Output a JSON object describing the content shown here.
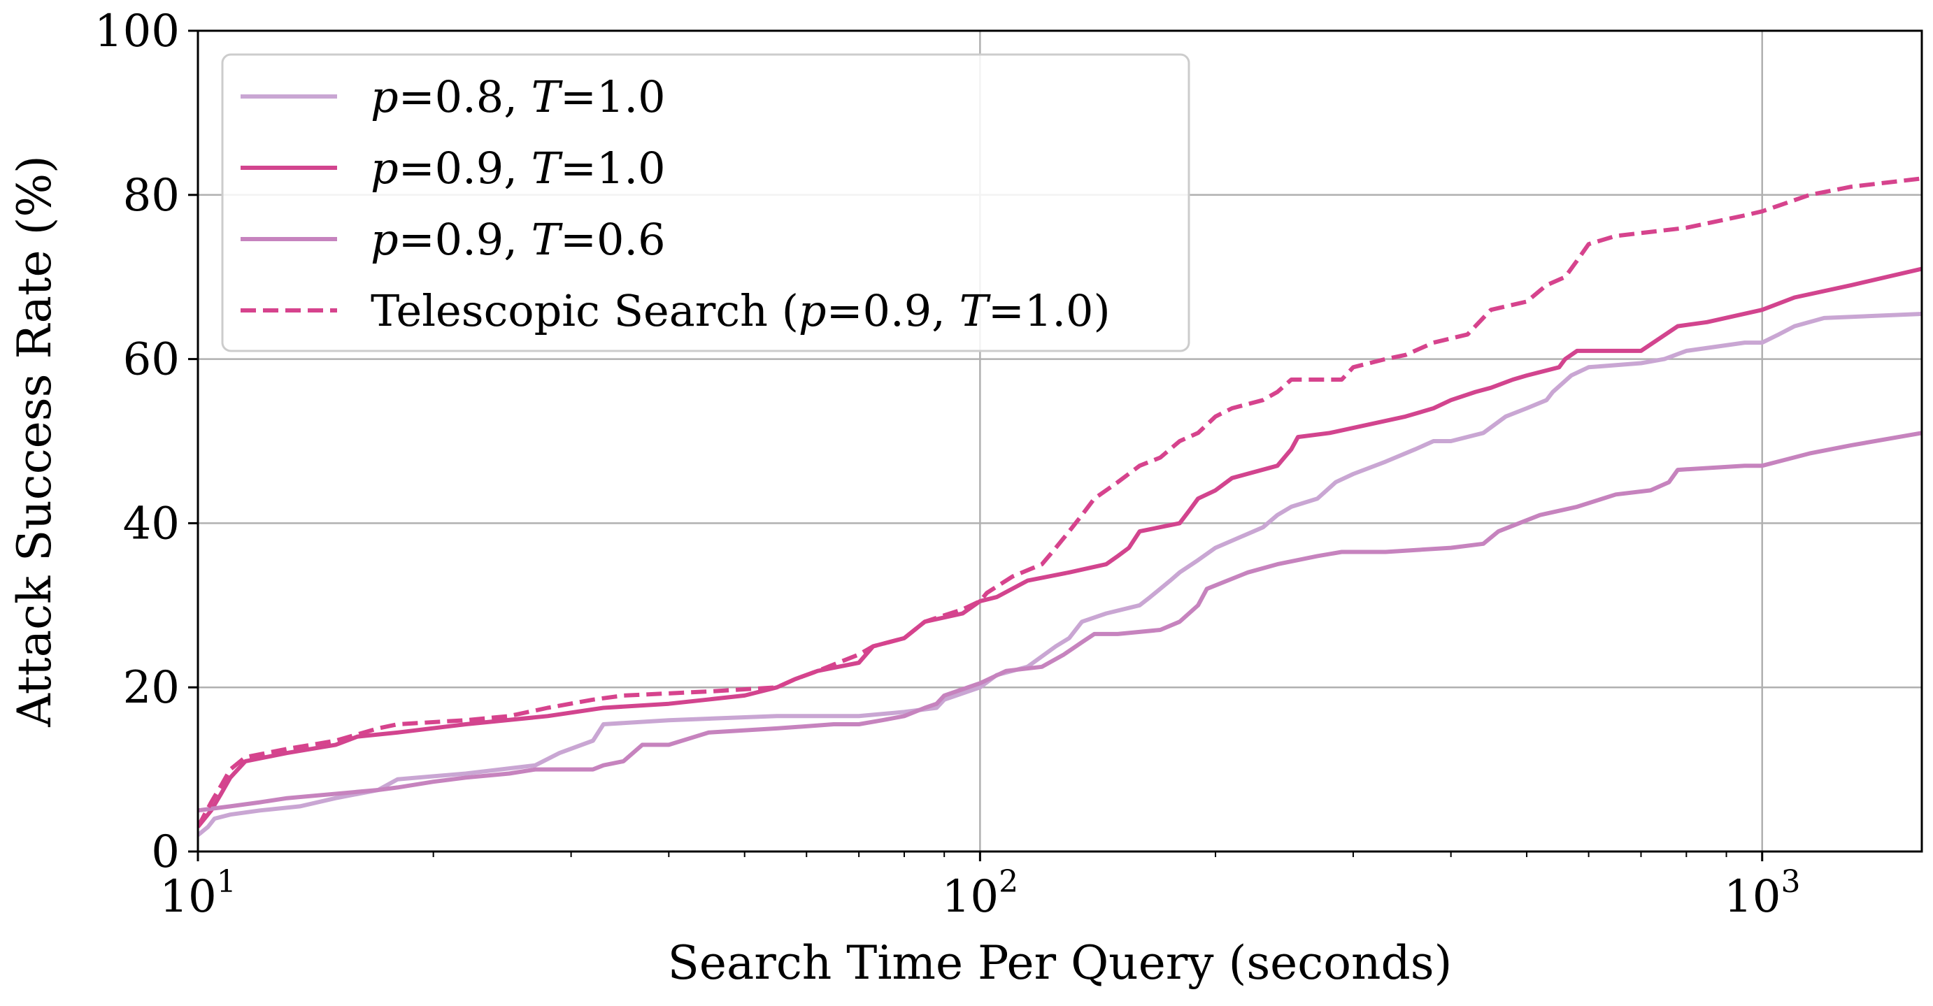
{
  "chart_data": {
    "type": "line",
    "xlabel": "Search Time Per Query (seconds)",
    "ylabel": "Attack Success Rate (%)",
    "x_scale": "log",
    "xlim": [
      10,
      1600
    ],
    "ylim": [
      0,
      100
    ],
    "grid": true,
    "legend_position": "top-left",
    "x_ticks": [
      {
        "value": 10,
        "base": "10",
        "exp": "1"
      },
      {
        "value": 100,
        "base": "10",
        "exp": "2"
      },
      {
        "value": 1000,
        "base": "10",
        "exp": "3"
      }
    ],
    "y_ticks": [
      0,
      20,
      40,
      60,
      80,
      100
    ],
    "y_tick_labels": [
      "0",
      "20",
      "40",
      "60",
      "80",
      "100"
    ],
    "series": [
      {
        "name": "p=0.8, T=1.0",
        "label": {
          "p": "p",
          "pval": "=0.8, ",
          "t": "T",
          "tval": "=1.0",
          "prefix": "",
          "suffix": ""
        },
        "color": "#c9a6d3",
        "dashed": false,
        "points": [
          [
            10,
            2
          ],
          [
            10.3,
            3
          ],
          [
            10.5,
            4
          ],
          [
            11,
            4.5
          ],
          [
            12,
            5
          ],
          [
            13.5,
            5.5
          ],
          [
            15,
            6.5
          ],
          [
            17,
            7.5
          ],
          [
            18,
            8.8
          ],
          [
            22,
            9.5
          ],
          [
            27,
            10.5
          ],
          [
            29,
            12
          ],
          [
            32,
            13.5
          ],
          [
            33,
            15.5
          ],
          [
            40,
            16
          ],
          [
            55,
            16.5
          ],
          [
            70,
            16.5
          ],
          [
            80,
            17
          ],
          [
            88,
            17.5
          ],
          [
            90,
            18.5
          ],
          [
            100,
            20
          ],
          [
            105,
            21.5
          ],
          [
            115,
            22.5
          ],
          [
            125,
            25
          ],
          [
            130,
            26
          ],
          [
            135,
            28
          ],
          [
            145,
            29
          ],
          [
            160,
            30
          ],
          [
            165,
            31
          ],
          [
            175,
            33
          ],
          [
            180,
            34
          ],
          [
            190,
            35.5
          ],
          [
            200,
            37
          ],
          [
            230,
            39.5
          ],
          [
            240,
            41
          ],
          [
            250,
            42
          ],
          [
            270,
            43
          ],
          [
            285,
            45
          ],
          [
            300,
            46
          ],
          [
            330,
            47.5
          ],
          [
            360,
            49
          ],
          [
            380,
            50
          ],
          [
            400,
            50
          ],
          [
            440,
            51
          ],
          [
            470,
            53
          ],
          [
            500,
            54
          ],
          [
            530,
            55
          ],
          [
            540,
            56
          ],
          [
            570,
            58
          ],
          [
            600,
            59
          ],
          [
            700,
            59.5
          ],
          [
            750,
            60
          ],
          [
            800,
            61
          ],
          [
            950,
            62
          ],
          [
            1000,
            62
          ],
          [
            1050,
            63
          ],
          [
            1100,
            64
          ],
          [
            1200,
            65
          ],
          [
            1600,
            65.5
          ]
        ]
      },
      {
        "name": "p=0.9, T=1.0",
        "label": {
          "p": "p",
          "pval": "=0.9, ",
          "t": "T",
          "tval": "=1.0",
          "prefix": "",
          "suffix": ""
        },
        "color": "#d2448e",
        "dashed": false,
        "points": [
          [
            10,
            3
          ],
          [
            10.4,
            5
          ],
          [
            10.7,
            7
          ],
          [
            11,
            9
          ],
          [
            11.5,
            11
          ],
          [
            13,
            12
          ],
          [
            15,
            13
          ],
          [
            16,
            14
          ],
          [
            18,
            14.5
          ],
          [
            22,
            15.5
          ],
          [
            28,
            16.5
          ],
          [
            33,
            17.5
          ],
          [
            40,
            18
          ],
          [
            50,
            19
          ],
          [
            55,
            20
          ],
          [
            58,
            21
          ],
          [
            62,
            22
          ],
          [
            70,
            23
          ],
          [
            73,
            25
          ],
          [
            80,
            26
          ],
          [
            85,
            28
          ],
          [
            95,
            29
          ],
          [
            100,
            30.5
          ],
          [
            105,
            31
          ],
          [
            115,
            33
          ],
          [
            130,
            34
          ],
          [
            145,
            35
          ],
          [
            150,
            36
          ],
          [
            155,
            37
          ],
          [
            160,
            39
          ],
          [
            180,
            40
          ],
          [
            185,
            41.5
          ],
          [
            190,
            43
          ],
          [
            200,
            44
          ],
          [
            210,
            45.5
          ],
          [
            240,
            47
          ],
          [
            250,
            49
          ],
          [
            255,
            50.5
          ],
          [
            280,
            51
          ],
          [
            350,
            53
          ],
          [
            380,
            54
          ],
          [
            400,
            55
          ],
          [
            430,
            56
          ],
          [
            450,
            56.5
          ],
          [
            480,
            57.5
          ],
          [
            500,
            58
          ],
          [
            550,
            59
          ],
          [
            560,
            60
          ],
          [
            580,
            61
          ],
          [
            700,
            61
          ],
          [
            780,
            64
          ],
          [
            850,
            64.5
          ],
          [
            1000,
            66
          ],
          [
            1100,
            67.5
          ],
          [
            1300,
            69
          ],
          [
            1600,
            71
          ]
        ]
      },
      {
        "name": "p=0.9, T=0.6",
        "label": {
          "p": "p",
          "pval": "=0.9, ",
          "t": "T",
          "tval": "=0.6",
          "prefix": "",
          "suffix": ""
        },
        "color": "#c683be",
        "dashed": false,
        "points": [
          [
            10,
            5
          ],
          [
            11,
            5.5
          ],
          [
            12,
            6
          ],
          [
            13,
            6.5
          ],
          [
            17,
            7.5
          ],
          [
            18,
            7.8
          ],
          [
            20,
            8.5
          ],
          [
            22,
            9
          ],
          [
            25,
            9.5
          ],
          [
            27,
            10
          ],
          [
            32,
            10
          ],
          [
            33,
            10.5
          ],
          [
            35,
            11
          ],
          [
            37,
            13
          ],
          [
            40,
            13
          ],
          [
            45,
            14.5
          ],
          [
            55,
            15
          ],
          [
            65,
            15.5
          ],
          [
            70,
            15.5
          ],
          [
            75,
            16
          ],
          [
            80,
            16.5
          ],
          [
            85,
            17.5
          ],
          [
            88,
            18
          ],
          [
            90,
            19
          ],
          [
            100,
            20.5
          ],
          [
            108,
            22
          ],
          [
            120,
            22.5
          ],
          [
            128,
            24
          ],
          [
            135,
            25.5
          ],
          [
            140,
            26.5
          ],
          [
            150,
            26.5
          ],
          [
            170,
            27
          ],
          [
            180,
            28
          ],
          [
            190,
            30
          ],
          [
            195,
            32
          ],
          [
            220,
            34
          ],
          [
            240,
            35
          ],
          [
            270,
            36
          ],
          [
            290,
            36.5
          ],
          [
            330,
            36.5
          ],
          [
            400,
            37
          ],
          [
            440,
            37.5
          ],
          [
            460,
            39
          ],
          [
            520,
            41
          ],
          [
            580,
            42
          ],
          [
            650,
            43.5
          ],
          [
            720,
            44
          ],
          [
            760,
            45
          ],
          [
            780,
            46.5
          ],
          [
            950,
            47
          ],
          [
            1000,
            47
          ],
          [
            1150,
            48.5
          ],
          [
            1300,
            49.5
          ],
          [
            1600,
            51
          ]
        ]
      },
      {
        "name": "Telescopic Search (p=0.9, T=1.0)",
        "label": {
          "p": "p",
          "pval": "=0.9, ",
          "t": "T",
          "tval": "=1.0",
          "prefix": "Telescopic Search (",
          "suffix": ")"
        },
        "color": "#d6438d",
        "dashed": true,
        "points": [
          [
            10,
            3
          ],
          [
            10.4,
            6
          ],
          [
            10.7,
            8
          ],
          [
            11,
            10
          ],
          [
            11.5,
            11.5
          ],
          [
            13,
            12.5
          ],
          [
            15,
            13.5
          ],
          [
            17,
            15
          ],
          [
            18,
            15.5
          ],
          [
            22,
            16
          ],
          [
            25,
            16.5
          ],
          [
            28,
            17.5
          ],
          [
            32,
            18.5
          ],
          [
            35,
            19
          ],
          [
            45,
            19.5
          ],
          [
            55,
            20
          ],
          [
            58,
            21
          ],
          [
            62,
            22
          ],
          [
            70,
            24
          ],
          [
            73,
            25
          ],
          [
            80,
            26
          ],
          [
            85,
            28
          ],
          [
            95,
            29.5
          ],
          [
            100,
            30.5
          ],
          [
            102,
            31.5
          ],
          [
            110,
            33.5
          ],
          [
            120,
            35
          ],
          [
            125,
            37
          ],
          [
            130,
            39
          ],
          [
            135,
            41
          ],
          [
            140,
            43
          ],
          [
            150,
            45
          ],
          [
            160,
            47
          ],
          [
            170,
            48
          ],
          [
            180,
            50
          ],
          [
            190,
            51
          ],
          [
            200,
            53
          ],
          [
            210,
            54
          ],
          [
            230,
            55
          ],
          [
            240,
            56
          ],
          [
            250,
            57.5
          ],
          [
            290,
            57.5
          ],
          [
            300,
            59
          ],
          [
            330,
            60
          ],
          [
            350,
            60.5
          ],
          [
            380,
            62
          ],
          [
            420,
            63
          ],
          [
            450,
            66
          ],
          [
            500,
            67
          ],
          [
            530,
            69
          ],
          [
            560,
            70
          ],
          [
            580,
            72
          ],
          [
            600,
            74
          ],
          [
            650,
            75
          ],
          [
            800,
            76
          ],
          [
            950,
            77.5
          ],
          [
            1000,
            78
          ],
          [
            1150,
            80
          ],
          [
            1300,
            81
          ],
          [
            1600,
            82
          ]
        ]
      }
    ]
  }
}
